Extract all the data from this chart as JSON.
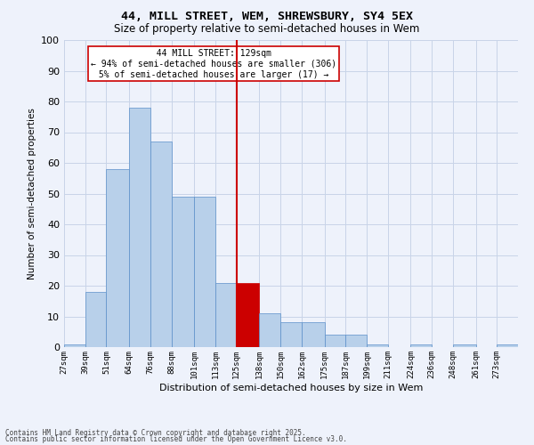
{
  "title_line1": "44, MILL STREET, WEM, SHREWSBURY, SY4 5EX",
  "title_line2": "Size of property relative to semi-detached houses in Wem",
  "xlabel": "Distribution of semi-detached houses by size in Wem",
  "ylabel": "Number of semi-detached properties",
  "annotation_line1": "44 MILL STREET: 129sqm",
  "annotation_line2": "← 94% of semi-detached houses are smaller (306)",
  "annotation_line3": "5% of semi-detached houses are larger (17) →",
  "bin_edges": [
    27,
    39,
    51,
    64,
    76,
    88,
    101,
    113,
    125,
    138,
    150,
    162,
    175,
    187,
    199,
    211,
    224,
    236,
    248,
    261,
    273
  ],
  "bin_labels": [
    "27sqm",
    "39sqm",
    "51sqm",
    "64sqm",
    "76sqm",
    "88sqm",
    "101sqm",
    "113sqm",
    "125sqm",
    "138sqm",
    "150sqm",
    "162sqm",
    "175sqm",
    "187sqm",
    "199sqm",
    "211sqm",
    "224sqm",
    "236sqm",
    "248sqm",
    "261sqm",
    "273sqm"
  ],
  "counts": [
    1,
    18,
    58,
    78,
    67,
    49,
    49,
    21,
    21,
    11,
    8,
    8,
    4,
    4,
    1,
    0,
    1,
    0,
    1,
    0,
    1
  ],
  "bar_color": "#b8d0ea",
  "bar_edge_color": "#5b8fc9",
  "highlight_color": "#cc0000",
  "vline_color": "#cc0000",
  "vline_x": 125,
  "highlight_bar_idx": 8,
  "grid_color": "#c8d4e8",
  "background_color": "#eef2fb",
  "ylim": [
    0,
    100
  ],
  "yticks": [
    0,
    10,
    20,
    30,
    40,
    50,
    60,
    70,
    80,
    90,
    100
  ],
  "footer_line1": "Contains HM Land Registry data © Crown copyright and database right 2025.",
  "footer_line2": "Contains public sector information licensed under the Open Government Licence v3.0."
}
